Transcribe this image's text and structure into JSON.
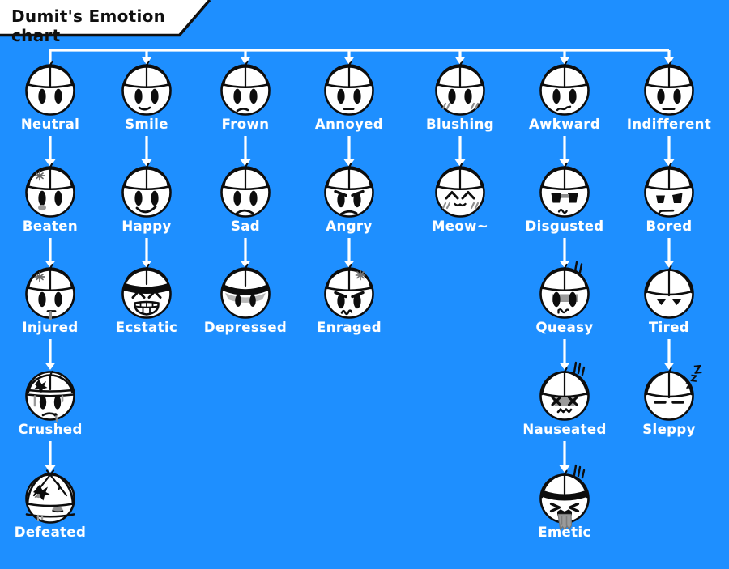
{
  "title": "Dumit's Emotion chart",
  "colors": {
    "background": "#1e8fff",
    "ink": "#0d0d0d",
    "paper": "#ffffff",
    "gray": "#9a9a9a",
    "gray_dark": "#777777",
    "connector": "#ffffff"
  },
  "glyphs": {
    "zzz": [
      "Z",
      "Z",
      "Z"
    ]
  },
  "chart": {
    "columns": [
      {
        "nodes": [
          {
            "label": "Neutral",
            "face": "neutral"
          },
          {
            "label": "Beaten",
            "face": "beaten"
          },
          {
            "label": "Injured",
            "face": "injured"
          },
          {
            "label": "Crushed",
            "face": "crushed"
          },
          {
            "label": "Defeated",
            "face": "defeated"
          }
        ]
      },
      {
        "nodes": [
          {
            "label": "Smile",
            "face": "smile"
          },
          {
            "label": "Happy",
            "face": "happy"
          },
          {
            "label": "Ecstatic",
            "face": "ecstatic"
          }
        ]
      },
      {
        "nodes": [
          {
            "label": "Frown",
            "face": "frown"
          },
          {
            "label": "Sad",
            "face": "sad"
          },
          {
            "label": "Depressed",
            "face": "depressed"
          }
        ]
      },
      {
        "nodes": [
          {
            "label": "Annoyed",
            "face": "annoyed"
          },
          {
            "label": "Angry",
            "face": "angry"
          },
          {
            "label": "Enraged",
            "face": "enraged"
          }
        ]
      },
      {
        "nodes": [
          {
            "label": "Blushing",
            "face": "blushing"
          },
          {
            "label": "Meow~",
            "face": "meow"
          }
        ]
      },
      {
        "nodes": [
          {
            "label": "Awkward",
            "face": "awkward"
          },
          {
            "label": "Disgusted",
            "face": "disgusted"
          },
          {
            "label": "Queasy",
            "face": "queasy"
          },
          {
            "label": "Nauseated",
            "face": "nauseated"
          },
          {
            "label": "Emetic",
            "face": "emetic"
          }
        ]
      },
      {
        "nodes": [
          {
            "label": "Indifferent",
            "face": "indifferent"
          },
          {
            "label": "Bored",
            "face": "bored"
          },
          {
            "label": "Tired",
            "face": "tired"
          },
          {
            "label": "Sleppy",
            "face": "sleppy"
          }
        ]
      }
    ]
  }
}
